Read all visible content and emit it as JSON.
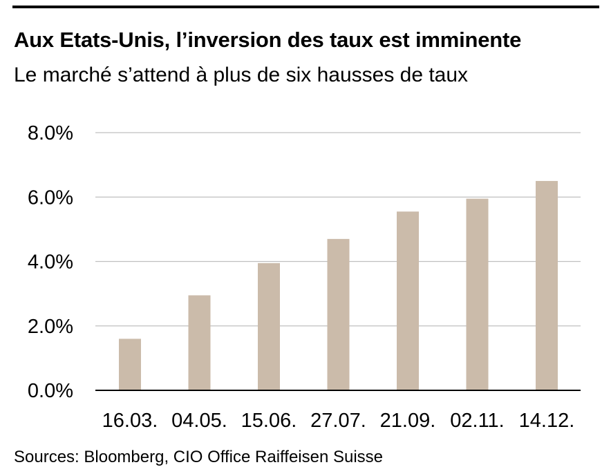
{
  "title": "Aux Etats-Unis, l’inversion des taux est imminente",
  "subtitle": "Le marché s’attend à plus de six hausses de taux",
  "source": "Sources: Bloomberg, CIO Office Raiffeisen Suisse",
  "colors": {
    "bar": "#cbbbaa",
    "grid": "#bfbfbf",
    "axis": "#000000"
  },
  "chart_data": {
    "type": "bar",
    "categories": [
      "16.03.",
      "04.05.",
      "15.06.",
      "27.07.",
      "21.09.",
      "02.11.",
      "14.12."
    ],
    "values": [
      1.6,
      2.95,
      3.95,
      4.7,
      5.55,
      5.95,
      6.5
    ],
    "yticks": [
      "0.0%",
      "2.0%",
      "4.0%",
      "6.0%",
      "8.0%"
    ],
    "ylim": [
      0,
      8
    ],
    "grid": true
  }
}
